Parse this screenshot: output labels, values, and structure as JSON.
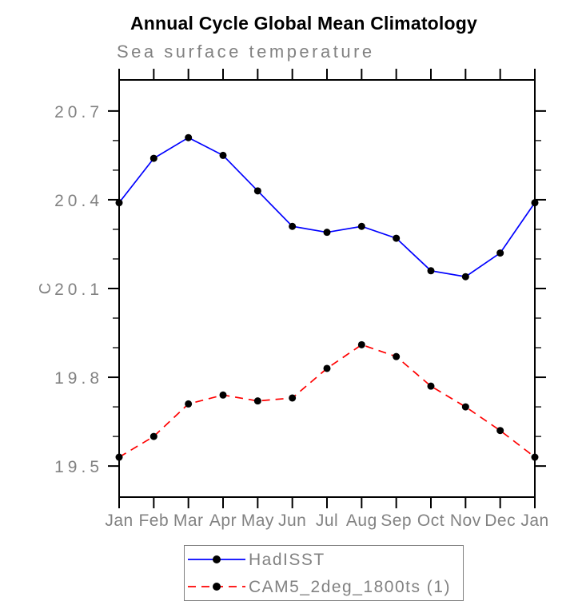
{
  "chart_data": {
    "type": "line",
    "title": "Annual Cycle Global Mean Climatology",
    "subtitle": "Sea surface temperature",
    "ylabel": "C",
    "xlabel": "",
    "x_categories": [
      "Jan",
      "Feb",
      "Mar",
      "Apr",
      "May",
      "Jun",
      "Jul",
      "Aug",
      "Sep",
      "Oct",
      "Nov",
      "Dec",
      "Jan"
    ],
    "y_ticks_major": [
      19.5,
      19.8,
      20.1,
      20.4,
      20.7
    ],
    "y_ticks_minor": [
      19.6,
      19.7,
      19.9,
      20.0,
      20.2,
      20.3,
      20.5,
      20.6
    ],
    "ylim": [
      19.395,
      20.805
    ],
    "grid": false,
    "legend_position": "bottom-center",
    "series": [
      {
        "name": "HadISST",
        "color": "#0000ff",
        "line_style": "solid",
        "marker": "circle",
        "marker_color": "#000000",
        "values": [
          20.39,
          20.54,
          20.61,
          20.55,
          20.43,
          20.31,
          20.29,
          20.31,
          20.27,
          20.16,
          20.14,
          20.22,
          20.39
        ]
      },
      {
        "name": "CAM5_2deg_1800ts (1)",
        "color": "#ff0000",
        "line_style": "dashed",
        "marker": "circle",
        "marker_color": "#000000",
        "values": [
          19.53,
          19.6,
          19.71,
          19.74,
          19.72,
          19.73,
          19.83,
          19.91,
          19.87,
          19.77,
          19.7,
          19.62,
          19.53
        ]
      }
    ]
  },
  "colors": {
    "series_blue": "#0000ff",
    "series_red": "#ff0000",
    "marker_black": "#000000",
    "axis_black": "#000000",
    "text_gray": "#828282",
    "legend_border": "#808080",
    "background": "#ffffff"
  }
}
